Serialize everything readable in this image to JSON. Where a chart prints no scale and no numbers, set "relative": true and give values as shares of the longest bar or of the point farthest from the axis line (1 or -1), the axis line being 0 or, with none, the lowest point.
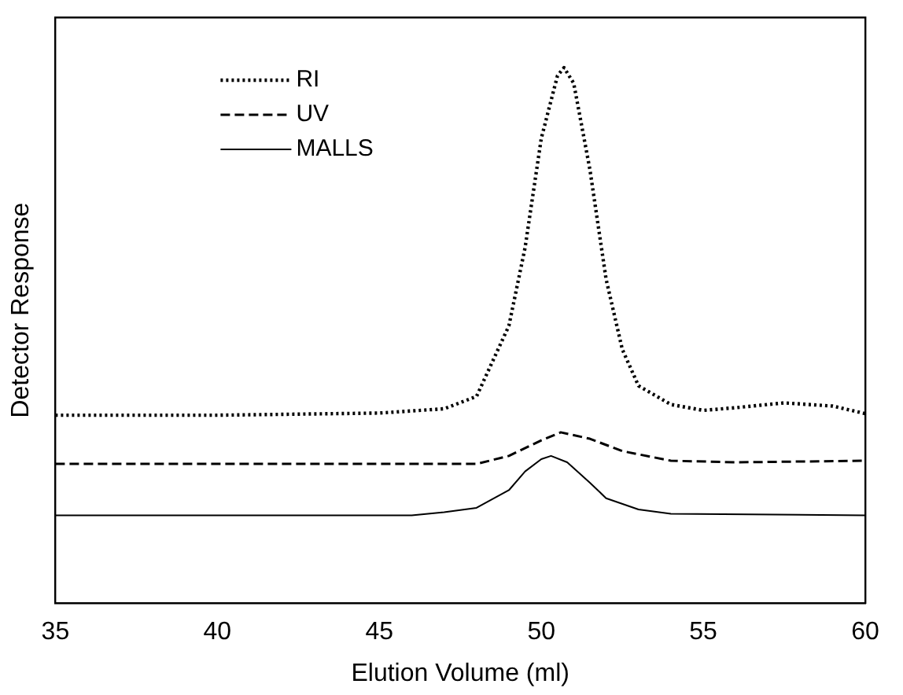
{
  "chart_data": {
    "type": "line",
    "xlabel": "Elution Volume (ml)",
    "ylabel": "Detector Response",
    "relative": true,
    "xlim": [
      35,
      60
    ],
    "xticks": [
      35,
      40,
      45,
      50,
      55,
      60
    ],
    "legend": "top left",
    "grid": false,
    "marker": "none",
    "series": [
      {
        "name": "RI",
        "color": "#000000",
        "line_style": "dotted",
        "x": [
          35,
          40,
          45,
          47,
          48,
          49,
          49.5,
          50,
          50.5,
          50.7,
          51,
          51.5,
          52,
          52.5,
          53,
          54,
          55,
          56,
          57.5,
          59,
          60
        ],
        "values": [
          0.351,
          0.351,
          0.355,
          0.363,
          0.386,
          0.518,
          0.664,
          0.868,
          0.985,
          1,
          0.971,
          0.81,
          0.605,
          0.474,
          0.406,
          0.371,
          0.36,
          0.365,
          0.374,
          0.368,
          0.354
        ]
      },
      {
        "name": "UV",
        "color": "#000000",
        "line_style": "dashed",
        "x": [
          35,
          40,
          45,
          48,
          49,
          50,
          50.6,
          51.5,
          52.5,
          54,
          56,
          60
        ],
        "values": [
          0.26,
          0.26,
          0.26,
          0.26,
          0.275,
          0.304,
          0.319,
          0.307,
          0.284,
          0.266,
          0.263,
          0.266
        ]
      },
      {
        "name": "MALLS",
        "color": "#000000",
        "line_style": "solid",
        "x": [
          35,
          40,
          46,
          47,
          48,
          49,
          49.5,
          50,
          50.3,
          50.8,
          51.5,
          52,
          53,
          54,
          60
        ],
        "values": [
          0.164,
          0.164,
          0.164,
          0.17,
          0.178,
          0.211,
          0.246,
          0.269,
          0.275,
          0.263,
          0.225,
          0.196,
          0.175,
          0.167,
          0.164
        ]
      }
    ]
  }
}
